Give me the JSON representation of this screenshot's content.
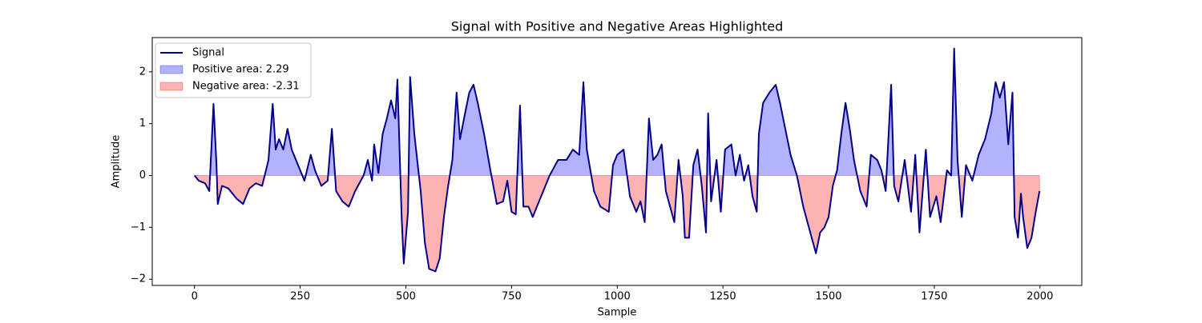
{
  "chart_data": {
    "type": "line",
    "title": "Signal with Positive and Negative Areas Highlighted",
    "xlabel": "Sample",
    "ylabel": "Amplitude",
    "x": [
      0,
      10,
      25,
      35,
      45,
      52,
      55,
      65,
      80,
      100,
      115,
      130,
      145,
      160,
      175,
      185,
      192,
      200,
      210,
      220,
      230,
      250,
      260,
      275,
      285,
      300,
      315,
      325,
      335,
      350,
      365,
      380,
      390,
      400,
      410,
      420,
      425,
      435,
      445,
      455,
      465,
      475,
      480,
      490,
      495,
      505,
      510,
      520,
      535,
      545,
      555,
      570,
      580,
      590,
      600,
      610,
      620,
      628,
      640,
      650,
      660,
      670,
      685,
      700,
      715,
      730,
      740,
      750,
      760,
      770,
      778,
      790,
      800,
      815,
      825,
      840,
      860,
      880,
      895,
      910,
      920,
      928,
      945,
      960,
      980,
      990,
      1000,
      1015,
      1030,
      1045,
      1055,
      1065,
      1075,
      1085,
      1095,
      1105,
      1115,
      1125,
      1135,
      1145,
      1155,
      1160,
      1170,
      1180,
      1190,
      1200,
      1210,
      1215,
      1222,
      1235,
      1245,
      1255,
      1270,
      1280,
      1290,
      1300,
      1310,
      1320,
      1330,
      1335,
      1345,
      1360,
      1375,
      1385,
      1395,
      1410,
      1425,
      1440,
      1450,
      1460,
      1470,
      1480,
      1490,
      1500,
      1510,
      1520,
      1530,
      1540,
      1550,
      1560,
      1575,
      1590,
      1600,
      1615,
      1625,
      1635,
      1648,
      1655,
      1665,
      1680,
      1695,
      1705,
      1715,
      1730,
      1740,
      1755,
      1765,
      1780,
      1790,
      1797,
      1805,
      1815,
      1825,
      1840,
      1855,
      1870,
      1885,
      1895,
      1905,
      1915,
      1925,
      1935,
      1940,
      1948,
      1955,
      1960,
      1970,
      1980,
      1990,
      1999
    ],
    "series": [
      {
        "name": "Signal",
        "color": "#00008b",
        "values": [
          0,
          -0.1,
          -0.15,
          -0.3,
          1.38,
          0.2,
          -0.55,
          -0.2,
          -0.25,
          -0.45,
          -0.55,
          -0.25,
          -0.15,
          -0.2,
          0.3,
          1.38,
          0.5,
          0.7,
          0.5,
          0.9,
          0.5,
          0.1,
          -0.1,
          0.4,
          0.1,
          -0.2,
          -0.1,
          0.9,
          -0.3,
          -0.5,
          -0.6,
          -0.3,
          -0.15,
          0,
          0.3,
          -0.1,
          0.6,
          0.05,
          0.8,
          1.1,
          1.45,
          1.1,
          1.85,
          -0.8,
          -1.7,
          -0.7,
          1.9,
          0.8,
          -0.3,
          -1.3,
          -1.8,
          -1.85,
          -1.6,
          -0.8,
          -0.2,
          0.3,
          1.6,
          0.7,
          1.2,
          1.6,
          1.75,
          1.4,
          0.8,
          0.1,
          -0.55,
          -0.5,
          -0.1,
          -0.7,
          -0.75,
          1.35,
          -0.6,
          -0.6,
          -0.8,
          -0.5,
          -0.3,
          0,
          0.3,
          0.3,
          0.5,
          0.4,
          1.8,
          0.5,
          -0.3,
          -0.6,
          -0.7,
          0.2,
          0.4,
          0.5,
          -0.4,
          -0.7,
          -0.5,
          -0.9,
          1.1,
          0.3,
          0.4,
          0.6,
          -0.3,
          -0.6,
          -0.9,
          0.3,
          -0.4,
          -1.2,
          -1.2,
          0.2,
          0.5,
          -0.2,
          -1.1,
          1.2,
          -0.5,
          0.3,
          -0.7,
          0.5,
          0.6,
          0,
          0.4,
          -0.1,
          0.2,
          -0.4,
          -0.7,
          0.8,
          1.4,
          1.6,
          1.75,
          1.4,
          1,
          0.4,
          0,
          -0.6,
          -0.9,
          -1.2,
          -1.5,
          -1.1,
          -1,
          -0.8,
          -0.2,
          0.1,
          0.8,
          1.4,
          0.9,
          0.3,
          -0.3,
          -0.6,
          0.4,
          0.3,
          0.1,
          -0.3,
          1.75,
          -0.2,
          -0.5,
          0.3,
          -0.7,
          0.4,
          -1.1,
          0.5,
          -0.8,
          -0.4,
          -0.9,
          0.1,
          0,
          2.45,
          0.3,
          -0.8,
          0.2,
          -0.1,
          0.4,
          0.7,
          1.2,
          1.8,
          1.5,
          1.8,
          0.6,
          1.6,
          -0.8,
          -1.2,
          -0.35,
          -0.8,
          -1.4,
          -1.2,
          -0.7,
          -0.3
        ]
      }
    ],
    "fills": [
      {
        "name": "Positive area: 2.29",
        "color": "#0000ff",
        "where": "above"
      },
      {
        "name": "Negative area: -2.31",
        "color": "#ff0000",
        "where": "below"
      }
    ],
    "xlim": [
      -99.95,
      2098.95
    ],
    "xticks": [
      0,
      250,
      500,
      750,
      1000,
      1250,
      1500,
      1750,
      2000
    ],
    "ylim": [
      -2.12,
      2.66
    ],
    "yticks": [
      {
        "value": -2,
        "label": "−2"
      },
      {
        "value": -1,
        "label": "−1"
      },
      0,
      1,
      2
    ],
    "legend": "upper left"
  }
}
